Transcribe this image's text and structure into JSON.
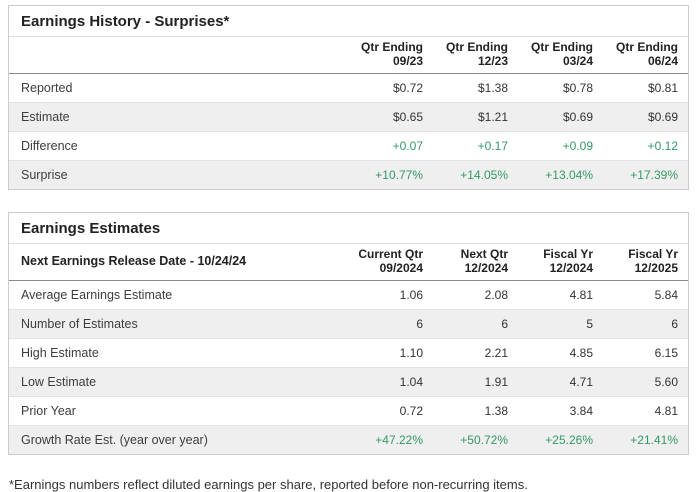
{
  "colors": {
    "positive_green": "#339966",
    "stripe_gray": "#efefef",
    "panel_border": "#cbcbcb",
    "header_rule": "#8a8a8a"
  },
  "chart_data": [
    {
      "type": "table",
      "title": "Earnings History - Surprises*",
      "columns": [
        {
          "label": "Qtr Ending",
          "sub": "09/23"
        },
        {
          "label": "Qtr Ending",
          "sub": "12/23"
        },
        {
          "label": "Qtr Ending",
          "sub": "03/24"
        },
        {
          "label": "Qtr Ending",
          "sub": "06/24"
        }
      ],
      "rows": [
        {
          "label": "Reported",
          "values": [
            "$0.72",
            "$1.38",
            "$0.78",
            "$0.81"
          ],
          "positive": false
        },
        {
          "label": "Estimate",
          "values": [
            "$0.65",
            "$1.21",
            "$0.69",
            "$0.69"
          ],
          "positive": false
        },
        {
          "label": "Difference",
          "values": [
            "+0.07",
            "+0.17",
            "+0.09",
            "+0.12"
          ],
          "positive": true
        },
        {
          "label": "Surprise",
          "values": [
            "+10.77%",
            "+14.05%",
            "+13.04%",
            "+17.39%"
          ],
          "positive": true
        }
      ]
    },
    {
      "type": "table",
      "title": "Earnings Estimates",
      "header_label": "Next Earnings Release Date - 10/24/24",
      "columns": [
        {
          "label": "Current Qtr",
          "sub": "09/2024"
        },
        {
          "label": "Next Qtr",
          "sub": "12/2024"
        },
        {
          "label": "Fiscal Yr",
          "sub": "12/2024"
        },
        {
          "label": "Fiscal Yr",
          "sub": "12/2025"
        }
      ],
      "rows": [
        {
          "label": "Average Earnings Estimate",
          "values": [
            "1.06",
            "2.08",
            "4.81",
            "5.84"
          ],
          "positive": false
        },
        {
          "label": "Number of Estimates",
          "values": [
            "6",
            "6",
            "5",
            "6"
          ],
          "positive": false
        },
        {
          "label": "High Estimate",
          "values": [
            "1.10",
            "2.21",
            "4.85",
            "6.15"
          ],
          "positive": false
        },
        {
          "label": "Low Estimate",
          "values": [
            "1.04",
            "1.91",
            "4.71",
            "5.60"
          ],
          "positive": false
        },
        {
          "label": "Prior Year",
          "values": [
            "0.72",
            "1.38",
            "3.84",
            "4.81"
          ],
          "positive": false
        },
        {
          "label": "Growth Rate Est. (year over year)",
          "values": [
            "+47.22%",
            "+50.72%",
            "+25.26%",
            "+21.41%"
          ],
          "positive": true
        }
      ]
    }
  ],
  "footnote": "*Earnings numbers reflect diluted earnings per share, reported before non-recurring items."
}
